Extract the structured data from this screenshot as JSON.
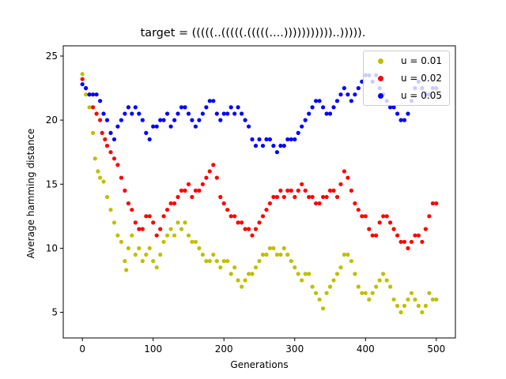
{
  "chart_data": {
    "type": "scatter",
    "title": "target = (((((..(((((.(((((....)))))))))))..))))).",
    "xlabel": "Generations",
    "ylabel": "Average hamming distance",
    "xlim": [
      -27,
      527
    ],
    "ylim": [
      3.0,
      25.8
    ],
    "xticks": [
      0,
      100,
      200,
      300,
      400,
      500
    ],
    "yticks": [
      5,
      10,
      15,
      20,
      25
    ],
    "legend_position": "top-right",
    "series": [
      {
        "name": "u = 0.01",
        "color": "#bfbf00",
        "points": [
          [
            0,
            23.6
          ],
          [
            5,
            22.0
          ],
          [
            10,
            21.0
          ],
          [
            15,
            19.0
          ],
          [
            18,
            17.0
          ],
          [
            22,
            16.0
          ],
          [
            25,
            15.5
          ],
          [
            30,
            15.2
          ],
          [
            35,
            14.0
          ],
          [
            40,
            13.0
          ],
          [
            45,
            12.0
          ],
          [
            50,
            11.0
          ],
          [
            55,
            10.5
          ],
          [
            60,
            9.0
          ],
          [
            62,
            8.3
          ],
          [
            65,
            10.0
          ],
          [
            70,
            11.0
          ],
          [
            75,
            9.5
          ],
          [
            80,
            10.0
          ],
          [
            85,
            9.0
          ],
          [
            90,
            9.5
          ],
          [
            95,
            10.0
          ],
          [
            100,
            9.0
          ],
          [
            105,
            8.5
          ],
          [
            110,
            9.5
          ],
          [
            115,
            10.5
          ],
          [
            120,
            11.0
          ],
          [
            125,
            11.5
          ],
          [
            130,
            11.0
          ],
          [
            135,
            12.0
          ],
          [
            140,
            11.5
          ],
          [
            145,
            12.0
          ],
          [
            150,
            11.0
          ],
          [
            155,
            10.5
          ],
          [
            160,
            10.5
          ],
          [
            165,
            10.0
          ],
          [
            170,
            9.5
          ],
          [
            175,
            9.0
          ],
          [
            180,
            9.0
          ],
          [
            185,
            9.5
          ],
          [
            190,
            9.0
          ],
          [
            195,
            8.5
          ],
          [
            200,
            9.0
          ],
          [
            205,
            9.0
          ],
          [
            210,
            8.0
          ],
          [
            215,
            8.5
          ],
          [
            220,
            7.5
          ],
          [
            225,
            7.0
          ],
          [
            230,
            7.5
          ],
          [
            235,
            8.0
          ],
          [
            240,
            8.0
          ],
          [
            245,
            8.5
          ],
          [
            250,
            9.0
          ],
          [
            255,
            9.5
          ],
          [
            260,
            9.5
          ],
          [
            265,
            10.0
          ],
          [
            270,
            10.0
          ],
          [
            275,
            9.5
          ],
          [
            280,
            9.5
          ],
          [
            285,
            10.0
          ],
          [
            290,
            9.5
          ],
          [
            295,
            9.0
          ],
          [
            300,
            8.5
          ],
          [
            305,
            8.0
          ],
          [
            310,
            7.5
          ],
          [
            315,
            8.0
          ],
          [
            320,
            8.0
          ],
          [
            325,
            7.0
          ],
          [
            330,
            6.5
          ],
          [
            335,
            6.0
          ],
          [
            340,
            5.3
          ],
          [
            345,
            6.5
          ],
          [
            350,
            7.0
          ],
          [
            355,
            7.5
          ],
          [
            360,
            8.0
          ],
          [
            365,
            8.5
          ],
          [
            370,
            9.5
          ],
          [
            375,
            9.5
          ],
          [
            380,
            9.0
          ],
          [
            385,
            8.0
          ],
          [
            390,
            7.0
          ],
          [
            395,
            6.5
          ],
          [
            400,
            6.5
          ],
          [
            405,
            6.0
          ],
          [
            410,
            6.5
          ],
          [
            415,
            7.0
          ],
          [
            420,
            7.5
          ],
          [
            425,
            8.0
          ],
          [
            430,
            7.5
          ],
          [
            435,
            7.0
          ],
          [
            440,
            6.0
          ],
          [
            445,
            5.5
          ],
          [
            450,
            5.0
          ],
          [
            455,
            5.5
          ],
          [
            460,
            6.0
          ],
          [
            465,
            6.5
          ],
          [
            470,
            6.0
          ],
          [
            475,
            5.5
          ],
          [
            480,
            5.0
          ],
          [
            485,
            5.5
          ],
          [
            490,
            6.5
          ],
          [
            495,
            6.0
          ],
          [
            500,
            6.0
          ]
        ]
      },
      {
        "name": "u = 0.02",
        "color": "#ff0000",
        "points": [
          [
            0,
            23.2
          ],
          [
            5,
            22.5
          ],
          [
            10,
            22.0
          ],
          [
            15,
            21.0
          ],
          [
            20,
            20.5
          ],
          [
            25,
            20.0
          ],
          [
            28,
            19.0
          ],
          [
            32,
            18.5
          ],
          [
            35,
            18.0
          ],
          [
            40,
            17.5
          ],
          [
            45,
            17.0
          ],
          [
            50,
            16.5
          ],
          [
            55,
            15.5
          ],
          [
            60,
            14.5
          ],
          [
            65,
            13.5
          ],
          [
            70,
            13.0
          ],
          [
            75,
            12.0
          ],
          [
            80,
            11.5
          ],
          [
            85,
            11.5
          ],
          [
            90,
            12.5
          ],
          [
            95,
            12.5
          ],
          [
            100,
            12.0
          ],
          [
            105,
            11.0
          ],
          [
            110,
            11.5
          ],
          [
            115,
            12.5
          ],
          [
            120,
            13.0
          ],
          [
            125,
            13.5
          ],
          [
            130,
            13.5
          ],
          [
            135,
            14.0
          ],
          [
            140,
            14.5
          ],
          [
            145,
            14.5
          ],
          [
            150,
            15.0
          ],
          [
            155,
            14.0
          ],
          [
            160,
            14.5
          ],
          [
            165,
            14.5
          ],
          [
            170,
            15.0
          ],
          [
            175,
            15.5
          ],
          [
            180,
            16.0
          ],
          [
            185,
            16.5
          ],
          [
            190,
            15.5
          ],
          [
            195,
            14.0
          ],
          [
            200,
            13.5
          ],
          [
            205,
            13.0
          ],
          [
            210,
            12.5
          ],
          [
            215,
            12.5
          ],
          [
            220,
            12.0
          ],
          [
            225,
            12.0
          ],
          [
            230,
            11.5
          ],
          [
            235,
            11.5
          ],
          [
            240,
            11.0
          ],
          [
            245,
            11.5
          ],
          [
            250,
            12.0
          ],
          [
            255,
            12.5
          ],
          [
            260,
            13.0
          ],
          [
            265,
            13.5
          ],
          [
            270,
            14.0
          ],
          [
            275,
            14.0
          ],
          [
            280,
            14.5
          ],
          [
            285,
            14.0
          ],
          [
            290,
            14.5
          ],
          [
            295,
            14.5
          ],
          [
            300,
            14.0
          ],
          [
            305,
            14.5
          ],
          [
            310,
            15.0
          ],
          [
            315,
            14.5
          ],
          [
            320,
            14.0
          ],
          [
            325,
            14.0
          ],
          [
            330,
            13.5
          ],
          [
            335,
            13.5
          ],
          [
            340,
            14.0
          ],
          [
            345,
            14.0
          ],
          [
            350,
            14.5
          ],
          [
            355,
            14.5
          ],
          [
            360,
            14.0
          ],
          [
            365,
            15.0
          ],
          [
            370,
            16.0
          ],
          [
            375,
            15.5
          ],
          [
            380,
            14.5
          ],
          [
            385,
            13.5
          ],
          [
            390,
            13.0
          ],
          [
            395,
            12.5
          ],
          [
            400,
            12.5
          ],
          [
            405,
            11.5
          ],
          [
            410,
            11.0
          ],
          [
            415,
            11.0
          ],
          [
            420,
            12.0
          ],
          [
            425,
            12.5
          ],
          [
            430,
            12.5
          ],
          [
            435,
            12.0
          ],
          [
            440,
            11.5
          ],
          [
            445,
            11.0
          ],
          [
            450,
            10.5
          ],
          [
            455,
            10.5
          ],
          [
            460,
            10.0
          ],
          [
            465,
            10.5
          ],
          [
            470,
            11.0
          ],
          [
            475,
            11.0
          ],
          [
            480,
            10.5
          ],
          [
            485,
            11.5
          ],
          [
            490,
            12.5
          ],
          [
            495,
            13.5
          ],
          [
            500,
            13.5
          ]
        ]
      },
      {
        "name": "u = 0.05",
        "color": "#0000ff",
        "points": [
          [
            0,
            22.8
          ],
          [
            5,
            22.5
          ],
          [
            10,
            22.0
          ],
          [
            15,
            22.0
          ],
          [
            20,
            22.0
          ],
          [
            25,
            21.5
          ],
          [
            30,
            20.5
          ],
          [
            35,
            20.0
          ],
          [
            40,
            19.0
          ],
          [
            45,
            18.5
          ],
          [
            50,
            19.5
          ],
          [
            55,
            20.0
          ],
          [
            60,
            20.5
          ],
          [
            65,
            21.0
          ],
          [
            70,
            20.5
          ],
          [
            75,
            21.0
          ],
          [
            80,
            20.5
          ],
          [
            85,
            20.0
          ],
          [
            90,
            19.0
          ],
          [
            95,
            18.5
          ],
          [
            100,
            19.5
          ],
          [
            105,
            19.5
          ],
          [
            110,
            20.0
          ],
          [
            115,
            20.0
          ],
          [
            120,
            20.5
          ],
          [
            125,
            19.5
          ],
          [
            130,
            20.0
          ],
          [
            135,
            20.5
          ],
          [
            140,
            21.0
          ],
          [
            145,
            21.0
          ],
          [
            150,
            20.5
          ],
          [
            155,
            20.0
          ],
          [
            160,
            19.5
          ],
          [
            165,
            20.0
          ],
          [
            170,
            20.5
          ],
          [
            175,
            21.0
          ],
          [
            180,
            21.5
          ],
          [
            185,
            21.5
          ],
          [
            190,
            20.5
          ],
          [
            195,
            20.0
          ],
          [
            200,
            20.5
          ],
          [
            205,
            20.5
          ],
          [
            210,
            21.0
          ],
          [
            215,
            20.5
          ],
          [
            220,
            21.0
          ],
          [
            225,
            20.5
          ],
          [
            230,
            20.0
          ],
          [
            235,
            19.5
          ],
          [
            240,
            18.5
          ],
          [
            245,
            18.0
          ],
          [
            250,
            18.5
          ],
          [
            255,
            18.0
          ],
          [
            260,
            18.5
          ],
          [
            265,
            18.5
          ],
          [
            270,
            18.0
          ],
          [
            275,
            17.5
          ],
          [
            280,
            18.0
          ],
          [
            285,
            18.0
          ],
          [
            290,
            18.5
          ],
          [
            295,
            18.5
          ],
          [
            300,
            18.5
          ],
          [
            305,
            19.0
          ],
          [
            310,
            19.5
          ],
          [
            315,
            20.0
          ],
          [
            320,
            20.5
          ],
          [
            325,
            21.0
          ],
          [
            330,
            21.5
          ],
          [
            335,
            21.5
          ],
          [
            340,
            21.0
          ],
          [
            345,
            20.5
          ],
          [
            350,
            20.5
          ],
          [
            355,
            21.0
          ],
          [
            360,
            21.5
          ],
          [
            365,
            22.0
          ],
          [
            370,
            22.5
          ],
          [
            375,
            22.0
          ],
          [
            380,
            21.5
          ],
          [
            385,
            22.0
          ],
          [
            390,
            22.5
          ],
          [
            395,
            23.0
          ],
          [
            400,
            23.5
          ],
          [
            405,
            23.5
          ],
          [
            410,
            23.0
          ],
          [
            415,
            23.5
          ],
          [
            420,
            22.5
          ],
          [
            425,
            22.0
          ],
          [
            430,
            21.5
          ],
          [
            435,
            21.0
          ],
          [
            440,
            21.0
          ],
          [
            445,
            20.5
          ],
          [
            450,
            20.0
          ],
          [
            455,
            20.0
          ],
          [
            460,
            20.5
          ],
          [
            465,
            21.5
          ],
          [
            470,
            22.5
          ],
          [
            475,
            23.0
          ],
          [
            480,
            22.5
          ],
          [
            485,
            22.0
          ],
          [
            490,
            22.0
          ],
          [
            495,
            22.5
          ],
          [
            500,
            22.5
          ]
        ]
      }
    ]
  }
}
